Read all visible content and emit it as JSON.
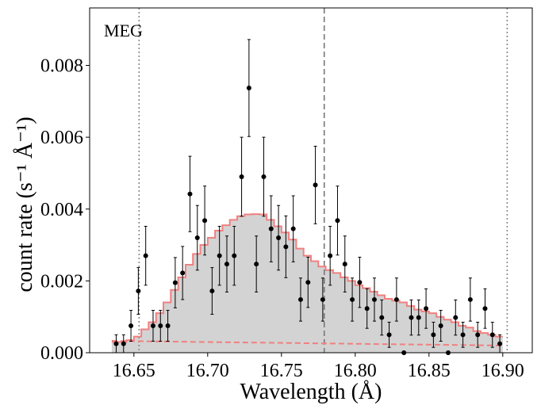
{
  "chart_data": {
    "type": "scatter",
    "annotation": "MEG",
    "xlabel": "Wavelength (Å)",
    "ylabel": "count rate (s⁻¹ Å⁻¹)",
    "xlim": [
      16.62,
      16.92
    ],
    "ylim": [
      0.0,
      0.0096
    ],
    "x_ticks": [
      16.65,
      16.7,
      16.75,
      16.8,
      16.85,
      16.9
    ],
    "x_tick_labels": [
      "16.65",
      "16.70",
      "16.75",
      "16.80",
      "16.85",
      "16.90"
    ],
    "y_ticks": [
      0.0,
      0.002,
      0.004,
      0.006,
      0.008
    ],
    "y_tick_labels": [
      "0.000",
      "0.002",
      "0.004",
      "0.006",
      "0.008"
    ],
    "vlines": [
      {
        "x": 16.6535,
        "style": "dotted",
        "color": "#888888"
      },
      {
        "x": 16.779,
        "style": "dashed",
        "color": "#777777"
      },
      {
        "x": 16.903,
        "style": "dotted",
        "color": "#888888"
      }
    ],
    "bin_width": 0.005,
    "model": {
      "name": "total model",
      "color": "#f08080",
      "fill": "#d3d3d3",
      "bin_starts": [
        16.635,
        16.64,
        16.645,
        16.65,
        16.655,
        16.66,
        16.665,
        16.67,
        16.675,
        16.68,
        16.685,
        16.69,
        16.695,
        16.7,
        16.705,
        16.71,
        16.715,
        16.72,
        16.725,
        16.73,
        16.735,
        16.74,
        16.745,
        16.75,
        16.755,
        16.76,
        16.765,
        16.77,
        16.775,
        16.78,
        16.785,
        16.79,
        16.795,
        16.8,
        16.805,
        16.81,
        16.815,
        16.82,
        16.825,
        16.83,
        16.835,
        16.84,
        16.845,
        16.85,
        16.855,
        16.86,
        16.865,
        16.87,
        16.875,
        16.88,
        16.885,
        16.89,
        16.895
      ],
      "values": [
        0.0003,
        0.0003,
        0.00035,
        0.00045,
        0.00065,
        0.00085,
        0.0011,
        0.0014,
        0.00175,
        0.0021,
        0.00245,
        0.00275,
        0.003,
        0.0032,
        0.0034,
        0.00355,
        0.0037,
        0.0038,
        0.00385,
        0.00386,
        0.00385,
        0.0037,
        0.00352,
        0.00335,
        0.00315,
        0.0029,
        0.0027,
        0.00255,
        0.0024,
        0.0023,
        0.00222,
        0.0021,
        0.002,
        0.00188,
        0.0018,
        0.0017,
        0.0016,
        0.0015,
        0.00145,
        0.0014,
        0.0013,
        0.0012,
        0.00115,
        0.0011,
        0.001,
        0.00092,
        0.00085,
        0.00075,
        0.0007,
        0.0006,
        0.00055,
        0.0005,
        0.00045
      ]
    },
    "continuum": {
      "name": "continuum",
      "style": "dashed",
      "color": "#f08080",
      "x": [
        16.635,
        16.9
      ],
      "y": [
        0.00033,
        0.0002
      ]
    },
    "points": {
      "name": "data",
      "color": "#000000",
      "x": [
        16.638,
        16.643,
        16.648,
        16.653,
        16.658,
        16.663,
        16.668,
        16.673,
        16.678,
        16.683,
        16.688,
        16.693,
        16.698,
        16.703,
        16.708,
        16.713,
        16.718,
        16.723,
        16.728,
        16.733,
        16.738,
        16.743,
        16.748,
        16.753,
        16.758,
        16.763,
        16.768,
        16.773,
        16.778,
        16.783,
        16.788,
        16.793,
        16.798,
        16.803,
        16.808,
        16.813,
        16.818,
        16.823,
        16.828,
        16.833,
        16.838,
        16.843,
        16.848,
        16.853,
        16.858,
        16.863,
        16.868,
        16.873,
        16.878,
        16.883,
        16.888,
        16.893,
        16.898
      ],
      "y": [
        0.00025,
        0.00025,
        0.00075,
        0.00172,
        0.0027,
        0.00075,
        0.00075,
        0.00075,
        0.00195,
        0.00222,
        0.00442,
        0.0032,
        0.00368,
        0.00172,
        0.0027,
        0.00247,
        0.0027,
        0.0049,
        0.00737,
        0.00247,
        0.0049,
        0.00345,
        0.0032,
        0.00295,
        0.00345,
        0.00148,
        0.00196,
        0.00467,
        0.00148,
        0.0027,
        0.00368,
        0.00247,
        0.00148,
        0.00196,
        0.00123,
        0.00148,
        0.00098,
        0.0005,
        0.00148,
        0.0,
        0.00098,
        0.00098,
        0.00123,
        0.0005,
        0.00075,
        0.0,
        0.00098,
        0.0005,
        0.00148,
        0.0005,
        0.00123,
        0.0005,
        0.00025
      ],
      "yerr": [
        0.00025,
        0.00025,
        0.00043,
        0.00065,
        0.00082,
        0.00043,
        0.00043,
        0.00043,
        0.0007,
        0.00074,
        0.00105,
        0.0009,
        0.00096,
        0.00065,
        0.00082,
        0.00078,
        0.00082,
        0.0011,
        0.00135,
        0.00078,
        0.0011,
        0.00092,
        0.0009,
        0.00086,
        0.00092,
        0.0006,
        0.0007,
        0.00108,
        0.0006,
        0.00082,
        0.00096,
        0.00078,
        0.0006,
        0.0007,
        0.00055,
        0.0006,
        0.00049,
        0.00035,
        0.0006,
        0.0,
        0.00049,
        0.00049,
        0.00055,
        0.00035,
        0.00043,
        0.0,
        0.00049,
        0.00035,
        0.0006,
        0.00035,
        0.00055,
        0.00035,
        0.00025
      ]
    }
  }
}
